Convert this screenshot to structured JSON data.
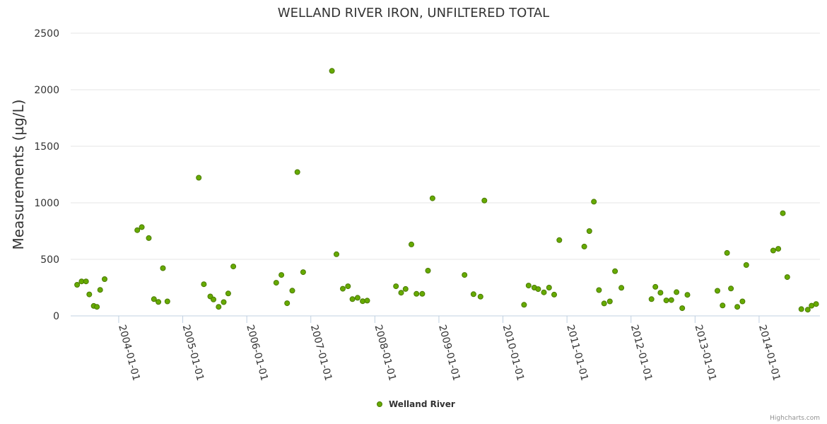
{
  "chart_data": {
    "type": "scatter",
    "title": "WELLAND RIVER IRON, UNFILTERED TOTAL",
    "ylabel": "Measurements (µg/L)",
    "xlabel": "",
    "ylim": [
      0,
      2500
    ],
    "yticks": [
      0,
      500,
      1000,
      1500,
      2000,
      2500
    ],
    "xlim": [
      2003.25,
      2014.95
    ],
    "xticks": [
      "2004-01-01",
      "2005-01-01",
      "2006-01-01",
      "2007-01-01",
      "2008-01-01",
      "2009-01-01",
      "2010-01-01",
      "2011-01-01",
      "2012-01-01",
      "2013-01-01",
      "2014-01-01"
    ],
    "xtick_years": [
      2004,
      2005,
      2006,
      2007,
      2008,
      2009,
      2010,
      2011,
      2012,
      2013,
      2014
    ],
    "grid": true,
    "legend": "bottom-center",
    "color": "#66aa00",
    "series": [
      {
        "name": "Welland River",
        "x": [
          2003.35,
          2003.42,
          2003.49,
          2003.54,
          2003.61,
          2003.66,
          2003.71,
          2003.78,
          2004.29,
          2004.36,
          2004.47,
          2004.55,
          2004.62,
          2004.69,
          2004.76,
          2005.25,
          2005.33,
          2005.43,
          2005.48,
          2005.56,
          2005.64,
          2005.71,
          2005.79,
          2006.46,
          2006.54,
          2006.63,
          2006.71,
          2006.79,
          2006.88,
          2007.33,
          2007.4,
          2007.5,
          2007.58,
          2007.65,
          2007.73,
          2007.81,
          2007.88,
          2008.33,
          2008.41,
          2008.48,
          2008.57,
          2008.65,
          2008.74,
          2008.83,
          2008.9,
          2009.4,
          2009.54,
          2009.65,
          2009.71,
          2010.33,
          2010.4,
          2010.49,
          2010.55,
          2010.64,
          2010.72,
          2010.8,
          2010.88,
          2011.27,
          2011.35,
          2011.42,
          2011.5,
          2011.58,
          2011.67,
          2011.75,
          2011.85,
          2012.32,
          2012.38,
          2012.46,
          2012.55,
          2012.63,
          2012.71,
          2012.8,
          2012.88,
          2013.35,
          2013.43,
          2013.5,
          2013.56,
          2013.66,
          2013.74,
          2013.8,
          2014.22,
          2014.3,
          2014.37,
          2014.44,
          2014.66,
          2014.76,
          2014.82,
          2014.89
        ],
        "y": [
          275,
          305,
          305,
          190,
          88,
          80,
          230,
          325,
          758,
          785,
          688,
          148,
          123,
          422,
          128,
          1222,
          280,
          172,
          145,
          80,
          122,
          198,
          437,
          293,
          362,
          112,
          223,
          1272,
          387,
          2167,
          545,
          240,
          262,
          148,
          160,
          130,
          135,
          262,
          205,
          238,
          632,
          195,
          195,
          400,
          1040,
          362,
          192,
          170,
          1020,
          98,
          268,
          250,
          237,
          208,
          250,
          188,
          670,
          613,
          750,
          1010,
          228,
          110,
          128,
          395,
          248,
          148,
          257,
          205,
          137,
          140,
          210,
          68,
          186,
          222,
          92,
          557,
          242,
          80,
          128,
          450,
          578,
          593,
          908,
          343,
          60,
          55,
          90,
          105
        ]
      }
    ],
    "legend_entries": [
      "Welland River"
    ],
    "credits": "Highcharts.com"
  }
}
